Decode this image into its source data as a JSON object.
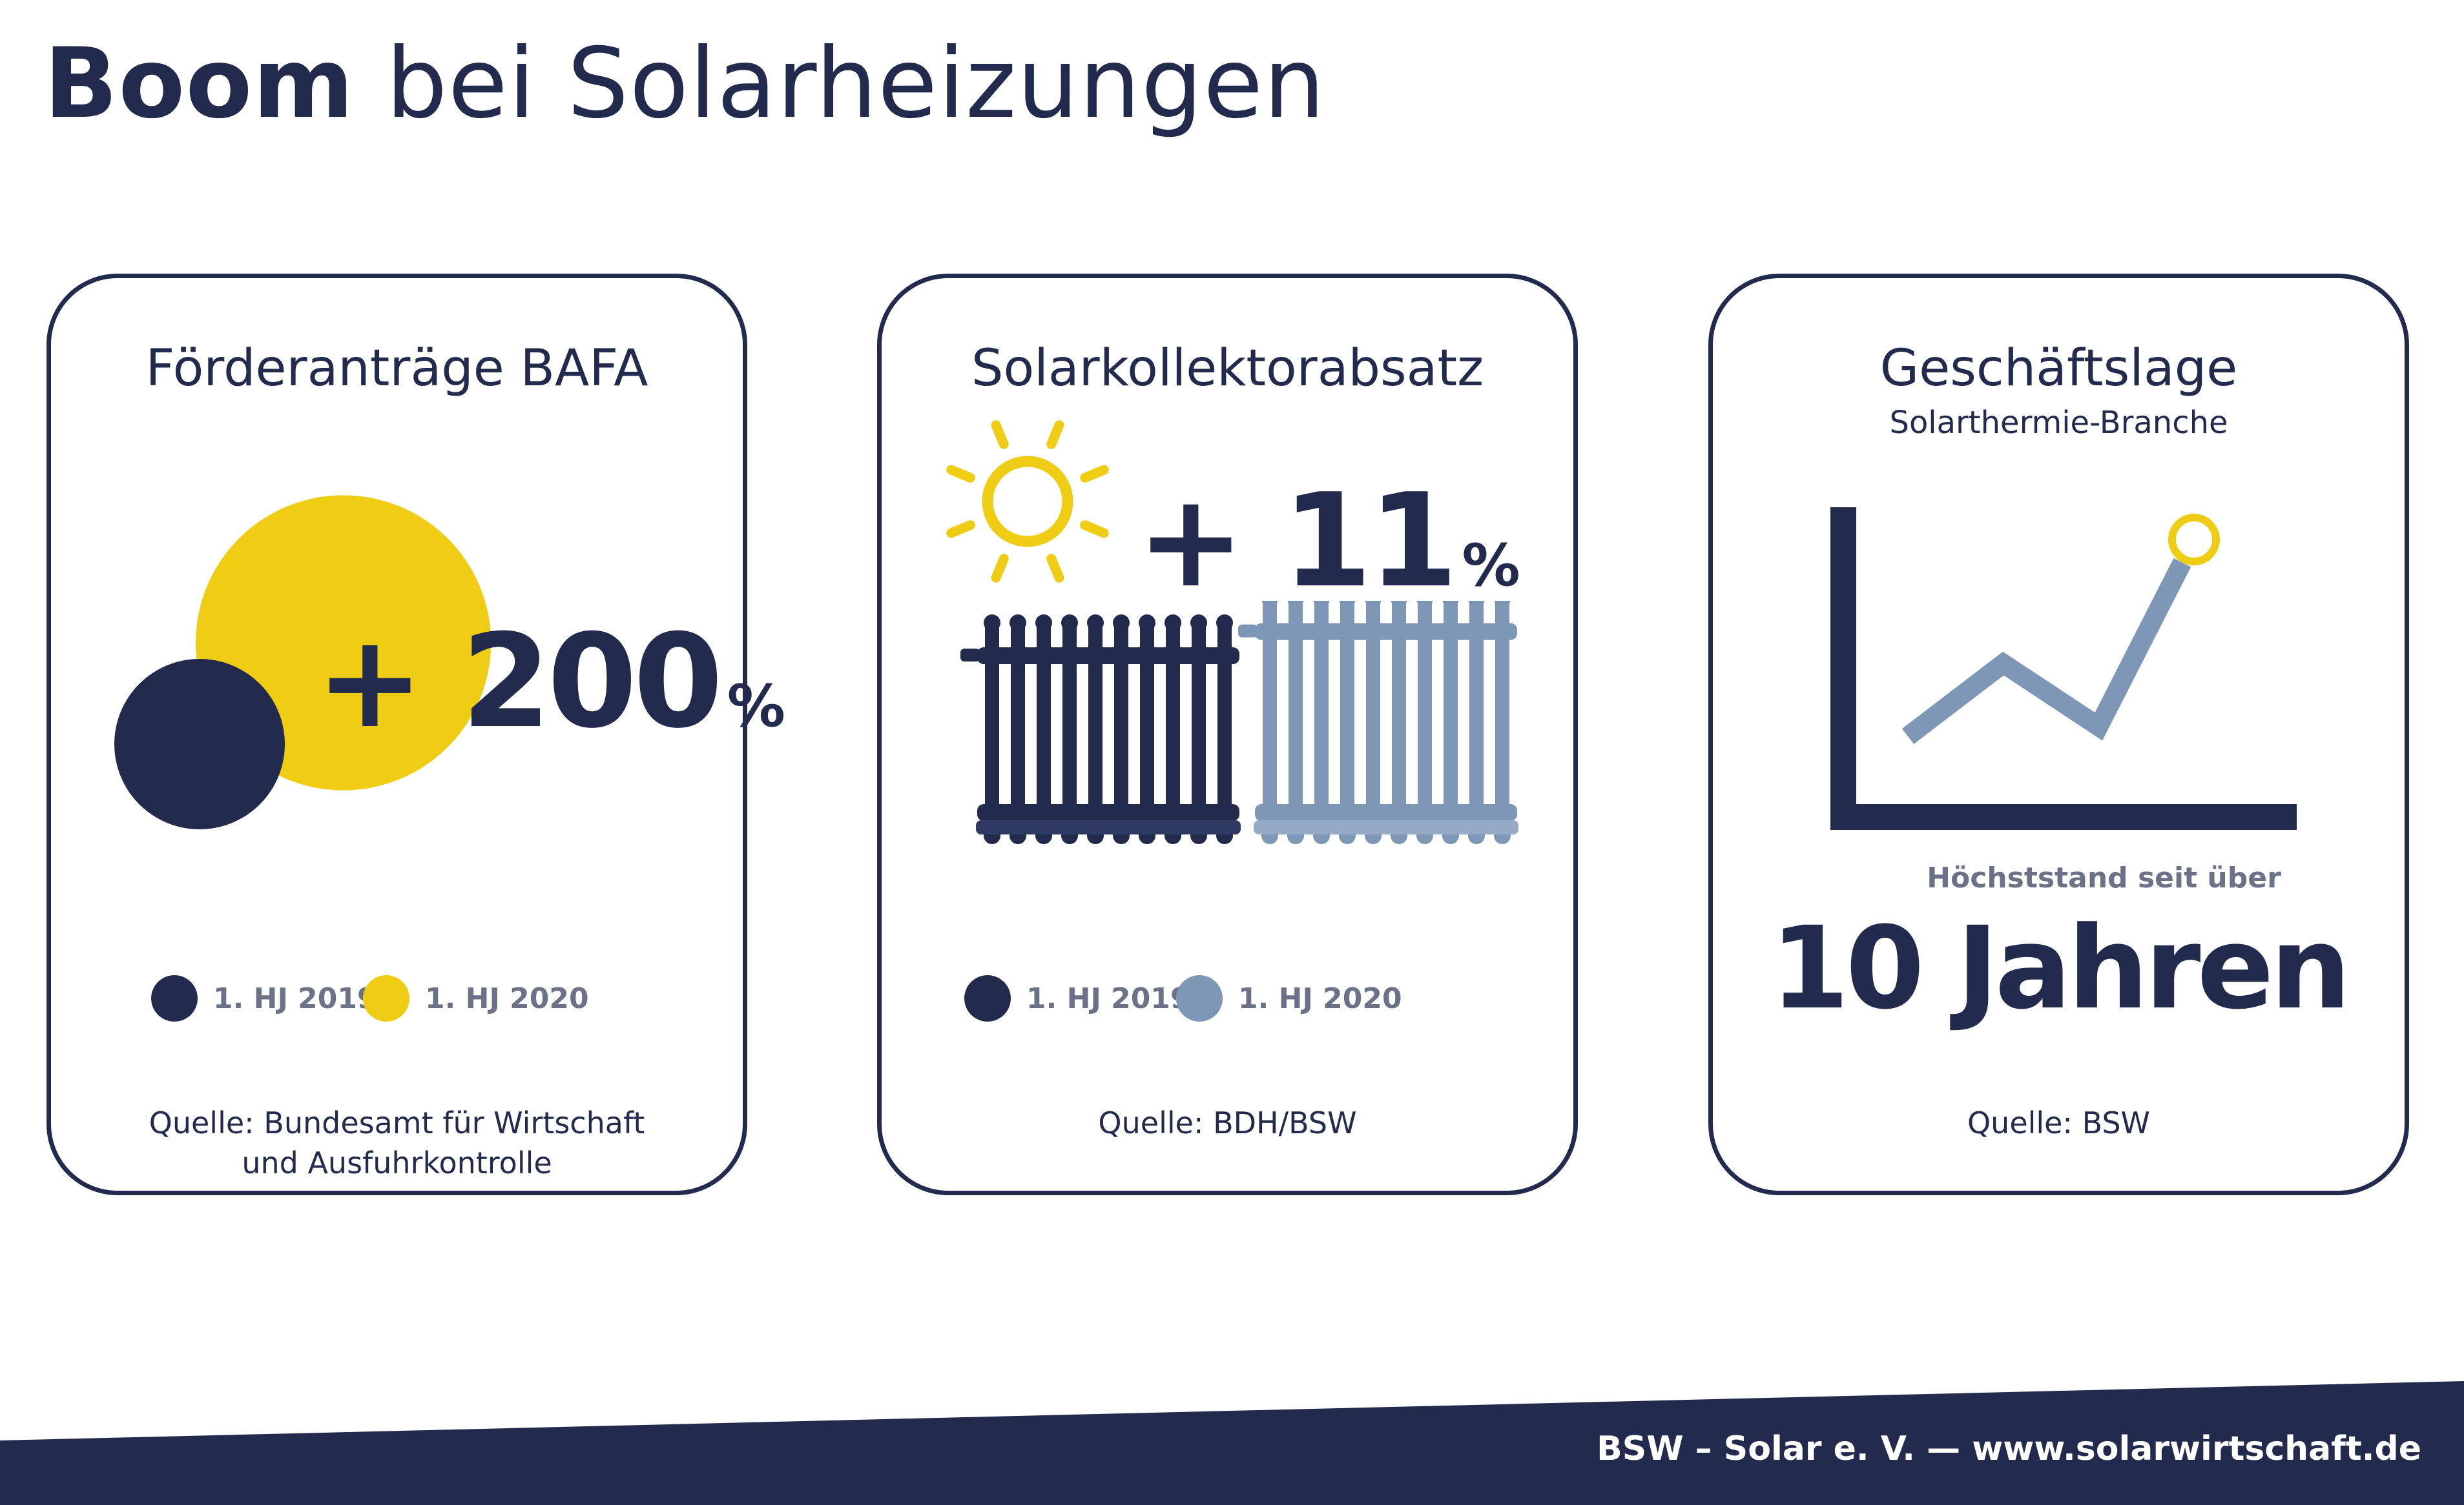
{
  "header": {
    "title_bold": "Boom",
    "title_rest": "bei Solarheizungen"
  },
  "colors": {
    "navy": "#222b4d",
    "yellow": "#eecd14",
    "steel_blue": "#7e97b7",
    "legend_text": "#6b7186"
  },
  "panels": [
    {
      "title": "Förderanträge BAFA",
      "change_text": "+ 200",
      "change_unit": "%",
      "legend": [
        {
          "label": "1. HJ 2019",
          "color": "#222b4d"
        },
        {
          "label": "1. HJ 2020",
          "color": "#eecd14"
        }
      ],
      "source_line1": "Quelle: Bundesamt für Wirtschaft",
      "source_line2": "und Ausfuhrkontrolle"
    },
    {
      "title": "Solarkollektorabsatz",
      "change_text": "+ 11",
      "change_unit": "%",
      "legend": [
        {
          "label": "1. HJ 2019",
          "color": "#222b4d"
        },
        {
          "label": "1. HJ 2020",
          "color": "#7e97b7"
        }
      ],
      "source": "Quelle: BDH/BSW"
    },
    {
      "title": "Geschäftslage",
      "subtitle": "Solarthermie-Branche",
      "caption": "Höchststand seit über",
      "highlight": "10 Jahren",
      "source": "Quelle: BSW"
    }
  ],
  "chart_data": [
    {
      "type": "bubble",
      "title": "Förderanträge BAFA",
      "categories": [
        "1. HJ 2019",
        "1. HJ 2020"
      ],
      "values": [
        1,
        3
      ],
      "annotation": "+ 200 %"
    },
    {
      "type": "pictogram",
      "title": "Solarkollektorabsatz",
      "categories": [
        "1. HJ 2019",
        "1. HJ 2020"
      ],
      "values": [
        1,
        1.11
      ],
      "annotation": "+ 11 %"
    },
    {
      "type": "line",
      "title": "Geschäftslage",
      "subtitle": "Solarthermie-Branche",
      "x": [
        0,
        1,
        2,
        3
      ],
      "values": [
        0,
        0.37,
        0.05,
        1
      ],
      "grid": false,
      "axes": "left and bottom only, unlabeled",
      "annotation": "Höchststand seit über 10 Jahren"
    }
  ],
  "footer": {
    "text": "BSW – Solar e. V. — www.solarwirtschaft.de"
  }
}
